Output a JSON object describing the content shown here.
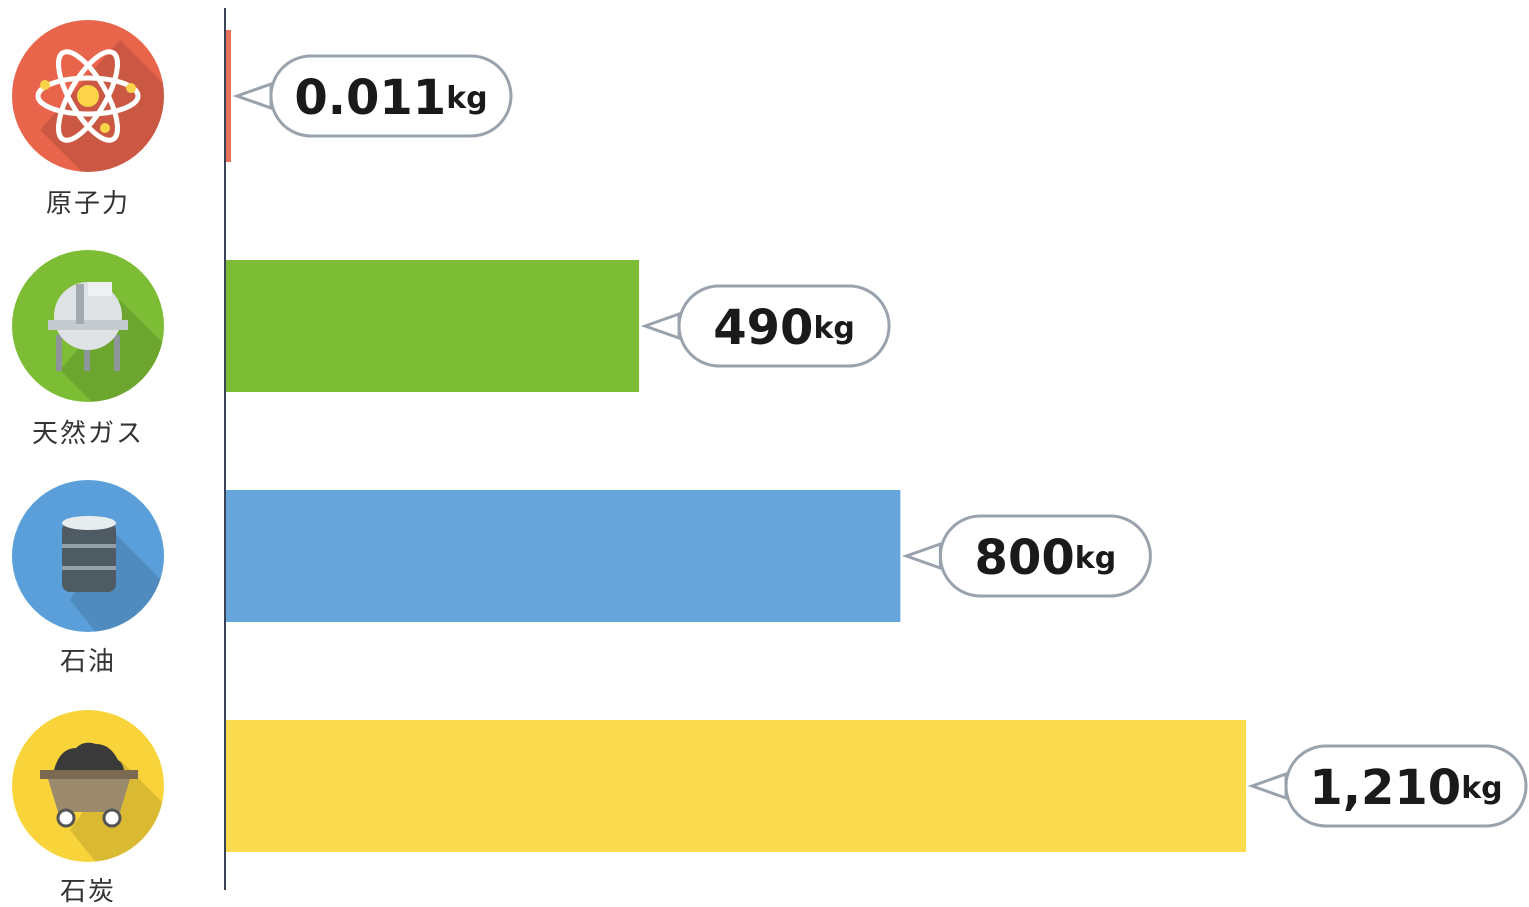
{
  "chart_data": {
    "type": "bar",
    "orientation": "horizontal",
    "categories": [
      "原子力",
      "天然ガス",
      "石油",
      "石炭"
    ],
    "values": [
      0.011,
      490,
      800,
      1210
    ],
    "value_labels": [
      "0.011",
      "490",
      "800",
      "1,210"
    ],
    "unit": "kg",
    "colors": [
      "#e8715a",
      "#7dbd35",
      "#66a6da",
      "#fadc4e"
    ],
    "icons": [
      "atom-icon",
      "gas-tank-icon",
      "oil-barrel-icon",
      "coal-cart-icon"
    ],
    "icon_colors": [
      "#e8654c",
      "#7dbd35",
      "#5a9fd9",
      "#f8d43a"
    ],
    "xlim": [
      0,
      1210
    ],
    "grid": false,
    "legend": "none"
  }
}
